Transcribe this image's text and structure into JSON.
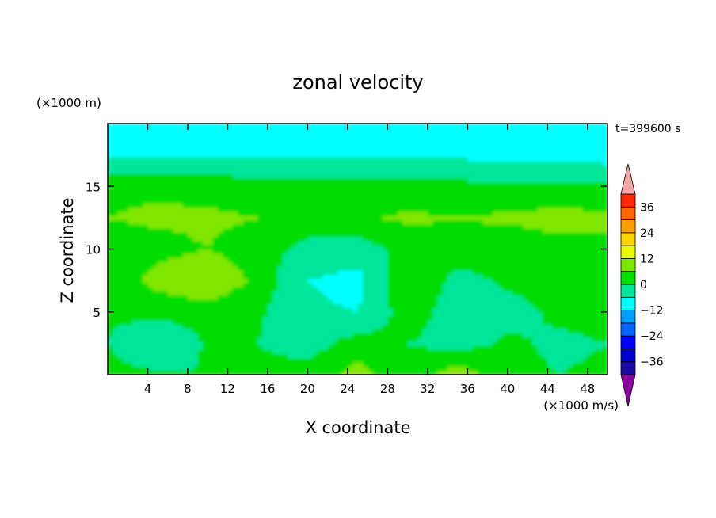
{
  "chart_data": {
    "type": "heatmap",
    "title": "zonal velocity",
    "xlabel": "X coordinate",
    "ylabel": "Z coordinate",
    "y_unit_label": "(×1000 m)",
    "x_unit_label": "(×1000 m/s)",
    "time_label": "t=399600 s",
    "xlim": [
      0,
      50
    ],
    "ylim": [
      0,
      20
    ],
    "x_ticks": [
      4,
      8,
      12,
      16,
      20,
      24,
      28,
      32,
      36,
      40,
      44,
      48
    ],
    "y_ticks": [
      5,
      10,
      15
    ],
    "colorbar": {
      "levels": [
        -42,
        -36,
        -30,
        -24,
        -18,
        -12,
        -6,
        0,
        6,
        12,
        18,
        24,
        30,
        36,
        42
      ],
      "tick_labels": [
        36,
        24,
        12,
        0,
        -12,
        -24,
        -36
      ],
      "colors": [
        "#4b0082",
        "#1a0aa6",
        "#0000cd",
        "#0000ff",
        "#0064ff",
        "#00a0ff",
        "#00ffff",
        "#00e69a",
        "#00dd00",
        "#80e600",
        "#e6ff00",
        "#ffd400",
        "#ffa000",
        "#ff6600",
        "#ff2800",
        "#e60000"
      ],
      "under_color": "#8b00a0",
      "over_color": "#f4a6a6"
    },
    "grid_x": [
      0,
      5,
      10,
      15,
      20,
      25,
      30,
      35,
      40,
      45,
      50
    ],
    "grid_z": [
      0,
      2.5,
      5,
      7.5,
      10,
      12.5,
      15,
      17.5,
      20
    ],
    "values": [
      [
        2,
        1,
        0,
        2,
        3,
        8,
        3,
        9,
        2,
        0,
        1
      ],
      [
        0,
        -6,
        1,
        0,
        -3,
        3,
        0,
        -2,
        1,
        -1,
        0
      ],
      [
        1,
        2,
        2,
        1,
        -5,
        -6,
        3,
        -3,
        -2,
        1,
        2
      ],
      [
        2,
        8,
        12,
        4,
        -6,
        -8,
        6,
        -2,
        1,
        2,
        3
      ],
      [
        3,
        4,
        6,
        3,
        -2,
        -3,
        2,
        3,
        2,
        4,
        5
      ],
      [
        6,
        7,
        7,
        6,
        4,
        5,
        7,
        6,
        7,
        8,
        7
      ],
      [
        5,
        5,
        4,
        3,
        3,
        2,
        2,
        2,
        1,
        2,
        2
      ],
      [
        -7,
        -7,
        -7,
        -7,
        -7,
        -7,
        -7,
        -7,
        -8,
        -8,
        -9
      ],
      [
        -8,
        -9,
        -9,
        -8,
        -8,
        -8,
        -8,
        -9,
        -9,
        -10,
        -10
      ]
    ]
  }
}
